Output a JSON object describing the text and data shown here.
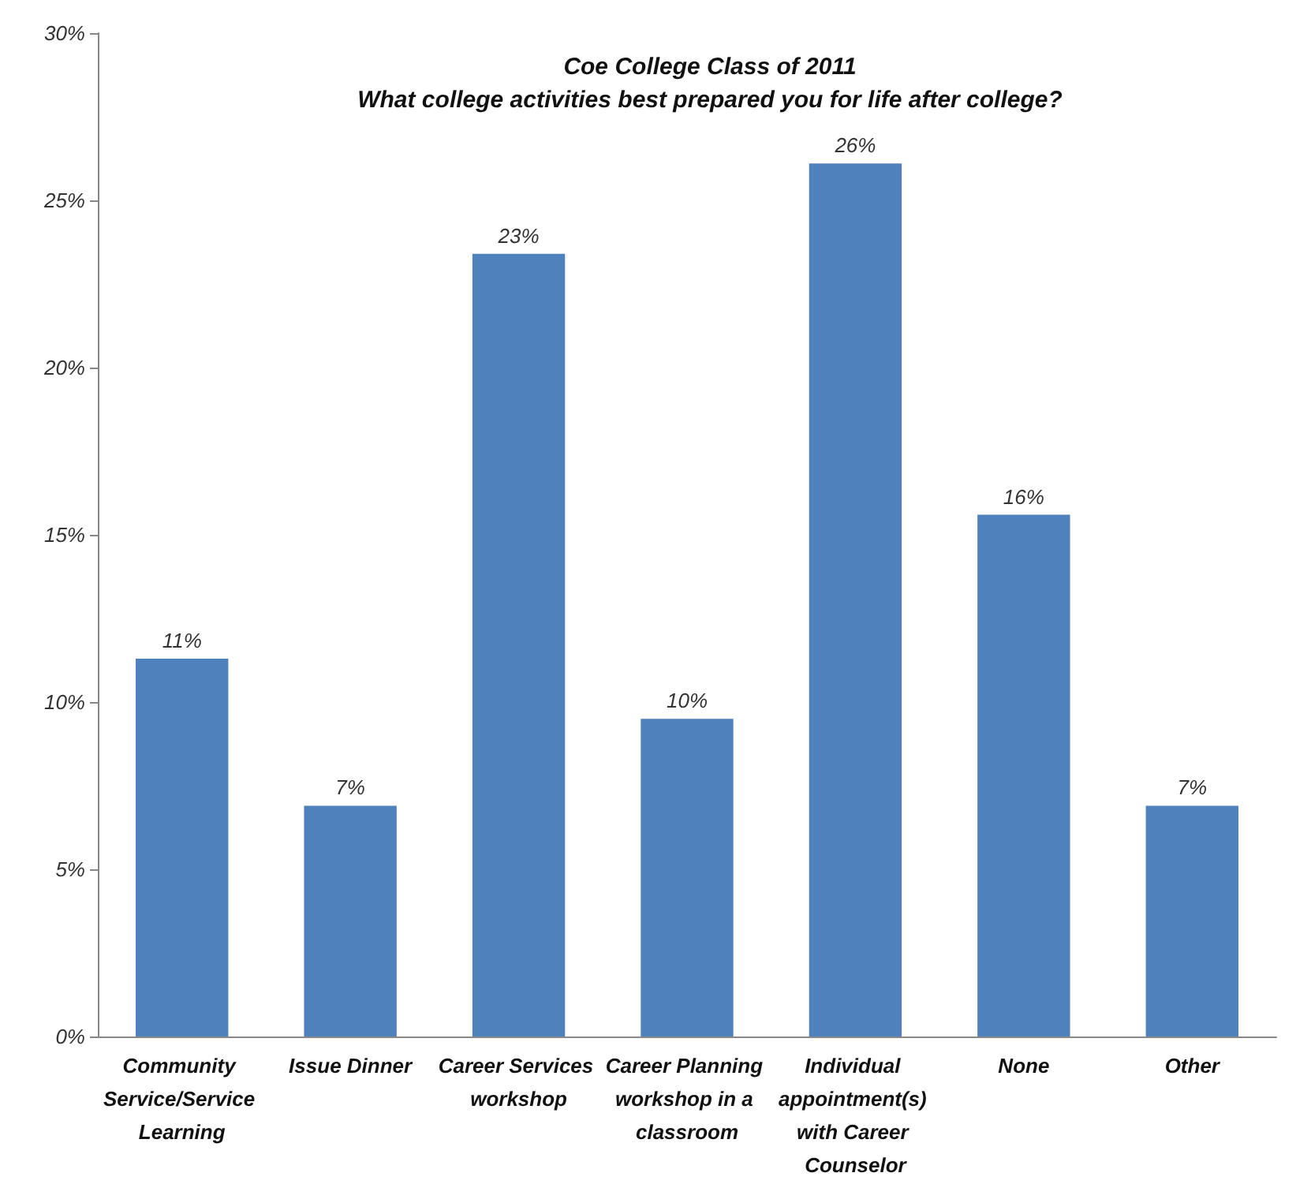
{
  "chart_data": {
    "type": "bar",
    "title": "Coe College Class of 2011",
    "subtitle": "What college activities best prepared you for life after college?",
    "categories": [
      "Community Service/Service Learning",
      "Issue Dinner",
      "Career Services workshop",
      "Career Planning workshop in a classroom",
      "Individual appointment(s) with Career Counselor",
      "None",
      "Other"
    ],
    "values": [
      11.3,
      6.9,
      23.4,
      9.5,
      26.1,
      15.6,
      6.9
    ],
    "value_labels": [
      "11%",
      "7%",
      "23%",
      "10%",
      "26%",
      "16%",
      "7%"
    ],
    "color": "#4f81bd",
    "ylim": [
      0,
      30
    ],
    "yticks": [
      {
        "value": 0,
        "label": "0%"
      },
      {
        "value": 5,
        "label": "5%"
      },
      {
        "value": 10,
        "label": "10%"
      },
      {
        "value": 15,
        "label": "15%"
      },
      {
        "value": 20,
        "label": "20%"
      },
      {
        "value": 25,
        "label": "25%"
      },
      {
        "value": 30,
        "label": "30%"
      }
    ],
    "grid": false
  }
}
